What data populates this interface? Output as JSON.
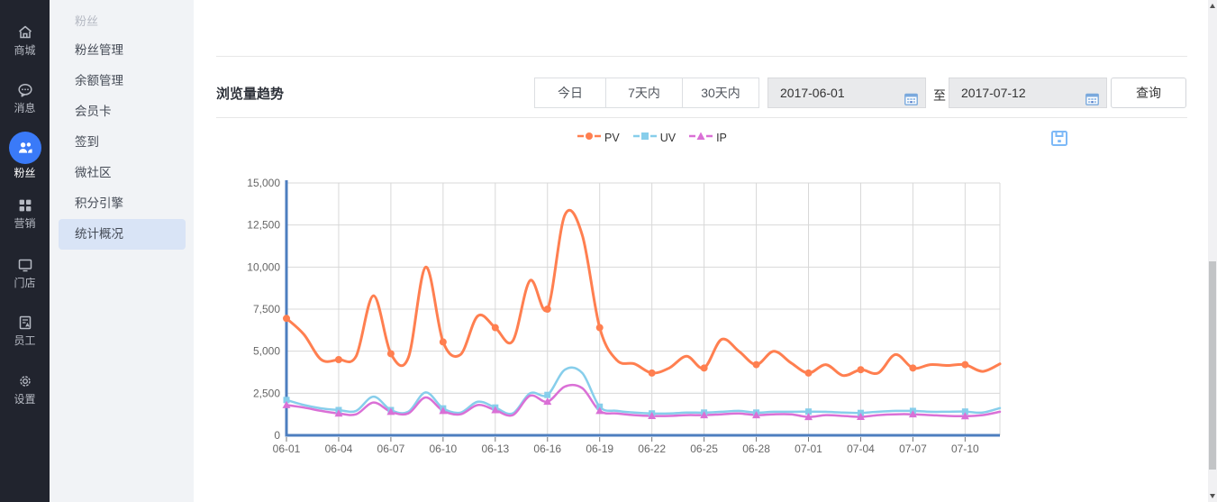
{
  "sidebar": {
    "items": [
      {
        "label": "商城",
        "icon": "shop",
        "active": false
      },
      {
        "label": "消息",
        "icon": "message",
        "active": false
      },
      {
        "label": "粉丝",
        "icon": "fans",
        "active": true
      },
      {
        "label": "营销",
        "icon": "marketing",
        "active": false
      },
      {
        "label": "门店",
        "icon": "store",
        "active": false
      },
      {
        "label": "员工",
        "icon": "staff",
        "active": false
      },
      {
        "label": "设置",
        "icon": "settings",
        "active": false
      }
    ],
    "active_color": "#3a7af8"
  },
  "submenu": {
    "header": "粉丝",
    "items": [
      "粉丝管理",
      "余额管理",
      "会员卡",
      "签到",
      "微社区",
      "积分引擎",
      "统计概况"
    ],
    "selected": "统计概况"
  },
  "toolbar": {
    "title": "浏览量趋势",
    "range_buttons": [
      "今日",
      "7天内",
      "30天内"
    ],
    "date_from": "2017-06-01",
    "to_label": "至",
    "date_to": "2017-07-12",
    "query_label": "查询"
  },
  "icons": {
    "calendar": "calendar-icon",
    "save": "save-as-image-icon"
  },
  "chart_data": {
    "type": "line",
    "smooth": true,
    "x": [
      "06-01",
      "06-02",
      "06-03",
      "06-04",
      "06-05",
      "06-06",
      "06-07",
      "06-08",
      "06-09",
      "06-10",
      "06-11",
      "06-12",
      "06-13",
      "06-14",
      "06-15",
      "06-16",
      "06-17",
      "06-18",
      "06-19",
      "06-20",
      "06-21",
      "06-22",
      "06-23",
      "06-24",
      "06-25",
      "06-26",
      "06-27",
      "06-28",
      "06-29",
      "06-30",
      "07-01",
      "07-02",
      "07-03",
      "07-04",
      "07-05",
      "07-06",
      "07-07",
      "07-08",
      "07-09",
      "07-10",
      "07-11",
      "07-12"
    ],
    "x_tick_labels": [
      "06-01",
      "06-04",
      "06-07",
      "06-10",
      "06-13",
      "06-16",
      "06-19",
      "06-22",
      "06-25",
      "06-28",
      "07-01",
      "07-04",
      "07-07",
      "07-10"
    ],
    "tick_every": 3,
    "series": [
      {
        "name": "PV",
        "color": "#ff7f50",
        "marker": "circle",
        "values": [
          6950,
          6000,
          4500,
          4500,
          4700,
          8300,
          4850,
          4600,
          10000,
          5550,
          4800,
          7100,
          6400,
          5600,
          9200,
          7500,
          13100,
          11900,
          6400,
          4450,
          4250,
          3700,
          4000,
          4700,
          4000,
          5700,
          5000,
          4200,
          5000,
          4300,
          3700,
          4200,
          3550,
          3900,
          3700,
          4800,
          4000,
          4200,
          4150,
          4200,
          3800,
          4250
        ]
      },
      {
        "name": "UV",
        "color": "#87ceeb",
        "marker": "square",
        "values": [
          2100,
          1800,
          1600,
          1500,
          1450,
          2300,
          1500,
          1400,
          2550,
          1600,
          1350,
          2000,
          1650,
          1300,
          2500,
          2400,
          3900,
          3700,
          1700,
          1450,
          1350,
          1300,
          1300,
          1350,
          1350,
          1400,
          1450,
          1350,
          1400,
          1400,
          1410,
          1400,
          1350,
          1330,
          1400,
          1450,
          1450,
          1400,
          1400,
          1410,
          1350,
          1620
        ]
      },
      {
        "name": "IP",
        "color": "#da70d6",
        "marker": "triangle",
        "values": [
          1800,
          1650,
          1450,
          1300,
          1250,
          1950,
          1400,
          1300,
          2250,
          1450,
          1250,
          1800,
          1500,
          1200,
          2350,
          2000,
          2900,
          2800,
          1450,
          1300,
          1200,
          1150,
          1150,
          1200,
          1200,
          1250,
          1300,
          1200,
          1250,
          1250,
          1090,
          1200,
          1150,
          1100,
          1200,
          1250,
          1250,
          1200,
          1150,
          1140,
          1200,
          1400
        ]
      }
    ],
    "ylim": [
      0,
      15000
    ],
    "y_ticks": [
      0,
      2500,
      5000,
      7500,
      10000,
      12500,
      15000
    ],
    "y_tick_labels": [
      "0",
      "2,500",
      "5,000",
      "7,500",
      "10,000",
      "12,500",
      "15,000"
    ],
    "grid": true,
    "legend_position": "top-center",
    "axis_color": "#4d7ebf",
    "grid_color": "#d8d8d8"
  }
}
